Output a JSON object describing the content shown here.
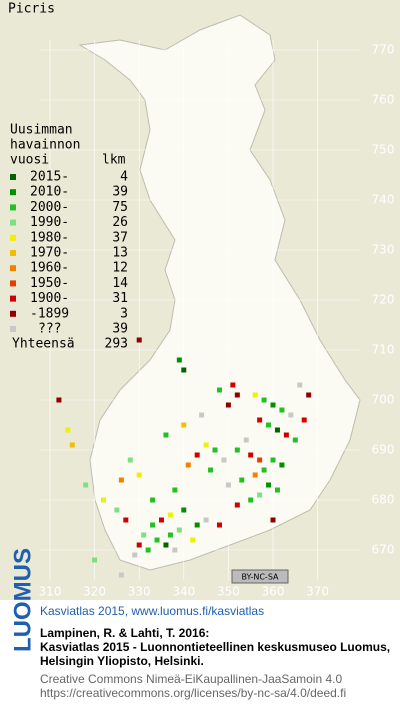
{
  "title": "Picris",
  "legend": {
    "header": [
      "Uusimman",
      "havainnon",
      "vuosi"
    ],
    "count_header": "lkm",
    "rows": [
      {
        "label": "2015-",
        "color": "#006400",
        "count": 4
      },
      {
        "label": "2010-",
        "color": "#009000",
        "count": 39
      },
      {
        "label": "2000-",
        "color": "#22c022",
        "count": 75
      },
      {
        "label": "1990-",
        "color": "#7ee07e",
        "count": 26
      },
      {
        "label": "1980-",
        "color": "#f0f000",
        "count": 37
      },
      {
        "label": "1970-",
        "color": "#f0c000",
        "count": 13
      },
      {
        "label": "1960-",
        "color": "#f08000",
        "count": 12
      },
      {
        "label": "1950-",
        "color": "#e04000",
        "count": 14
      },
      {
        "label": "1900-",
        "color": "#d00000",
        "count": 31
      },
      {
        "label": "-1899",
        "color": "#900000",
        "count": 3
      },
      {
        "label": "???",
        "color": "#c8c8c8",
        "count": 39
      }
    ],
    "total_label": "Yhteensä",
    "total": 293
  },
  "axes": {
    "xticks": [
      310,
      320,
      330,
      340,
      350,
      360,
      370
    ],
    "yticks": [
      770,
      760,
      750,
      740,
      730,
      720,
      710,
      700,
      690,
      680,
      670
    ]
  },
  "squares": [
    [
      356,
      701,
      4
    ],
    [
      358,
      700,
      2
    ],
    [
      360,
      699,
      1
    ],
    [
      362,
      698,
      2
    ],
    [
      364,
      697,
      10
    ],
    [
      357,
      696,
      8
    ],
    [
      359,
      695,
      2
    ],
    [
      361,
      694,
      0
    ],
    [
      363,
      693,
      8
    ],
    [
      365,
      692,
      2
    ],
    [
      354,
      692,
      10
    ],
    [
      352,
      690,
      2
    ],
    [
      355,
      689,
      8
    ],
    [
      357,
      688,
      7
    ],
    [
      360,
      688,
      2
    ],
    [
      362,
      687,
      1
    ],
    [
      358,
      686,
      2
    ],
    [
      356,
      685,
      6
    ],
    [
      353,
      684,
      2
    ],
    [
      350,
      683,
      10
    ],
    [
      359,
      683,
      1
    ],
    [
      361,
      682,
      2
    ],
    [
      357,
      681,
      3
    ],
    [
      355,
      680,
      2
    ],
    [
      352,
      679,
      8
    ],
    [
      349,
      688,
      10
    ],
    [
      347,
      690,
      2
    ],
    [
      345,
      691,
      4
    ],
    [
      343,
      689,
      8
    ],
    [
      346,
      686,
      2
    ],
    [
      341,
      687,
      6
    ],
    [
      338,
      682,
      2
    ],
    [
      340,
      678,
      1
    ],
    [
      337,
      677,
      4
    ],
    [
      335,
      676,
      8
    ],
    [
      333,
      675,
      2
    ],
    [
      331,
      673,
      3
    ],
    [
      334,
      672,
      2
    ],
    [
      336,
      671,
      0
    ],
    [
      338,
      670,
      10
    ],
    [
      332,
      670,
      2
    ],
    [
      330,
      671,
      8
    ],
    [
      329,
      669,
      10
    ],
    [
      337,
      673,
      2
    ],
    [
      339,
      674,
      3
    ],
    [
      343,
      675,
      1
    ],
    [
      345,
      676,
      10
    ],
    [
      348,
      675,
      8
    ],
    [
      342,
      672,
      4
    ],
    [
      327,
      676,
      8
    ],
    [
      325,
      678,
      3
    ],
    [
      322,
      680,
      4
    ],
    [
      318,
      683,
      3
    ],
    [
      314,
      694,
      4
    ],
    [
      312,
      700,
      9
    ],
    [
      315,
      691,
      5
    ],
    [
      326,
      684,
      6
    ],
    [
      330,
      685,
      4
    ],
    [
      333,
      680,
      2
    ],
    [
      328,
      688,
      3
    ],
    [
      336,
      693,
      2
    ],
    [
      340,
      695,
      5
    ],
    [
      344,
      697,
      10
    ],
    [
      350,
      699,
      9
    ],
    [
      352,
      701,
      9
    ],
    [
      348,
      702,
      2
    ],
    [
      351,
      703,
      8
    ],
    [
      366,
      703,
      10
    ],
    [
      368,
      701,
      9
    ],
    [
      367,
      696,
      8
    ],
    [
      330,
      712,
      9
    ],
    [
      339,
      708,
      1
    ],
    [
      340,
      706,
      0
    ],
    [
      320,
      668,
      3
    ],
    [
      326,
      665,
      10
    ],
    [
      360,
      676,
      9
    ]
  ],
  "badge": "BY-NC-SA",
  "footer": {
    "logo": "LUOMUS",
    "headline": "Kasviatlas 2015, www.luomus.fi/kasviatlas",
    "citation": [
      "Lampinen, R. & Lahti, T. 2016:",
      "Kasviatlas 2015 - Luonnontieteellinen keskusmuseo Luomus,",
      "Helsingin Yliopisto, Helsinki."
    ],
    "license": [
      "Creative Commons Nimeä-EiKaupallinen-JaaSamoin 4.0",
      "https://creativecommons.org/licenses/by-nc-sa/4.0/deed.fi"
    ]
  }
}
